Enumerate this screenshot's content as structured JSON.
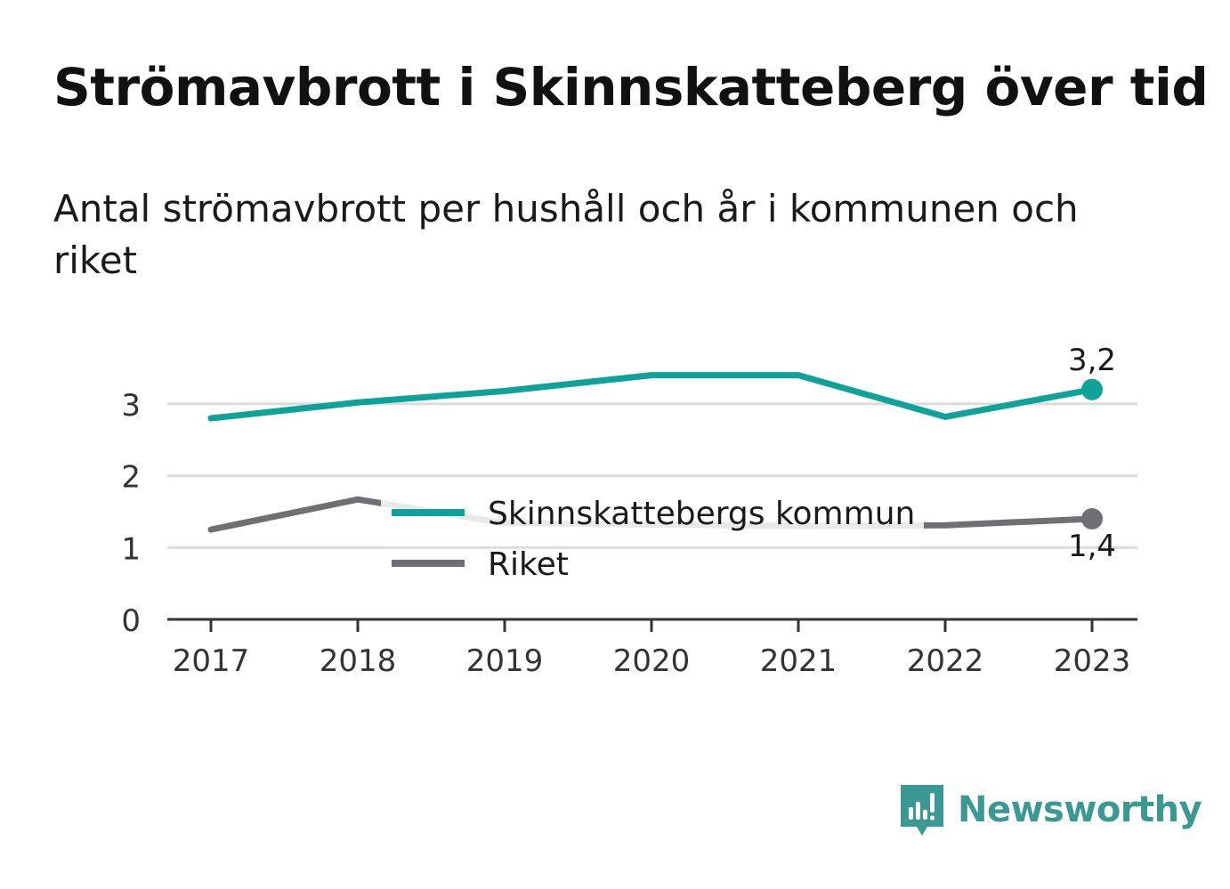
{
  "title": "Strömavbrott i Skinnskatteberg över tid",
  "subtitle": "Antal strömavbrott per hushåll och år i kommunen och riket",
  "brand": {
    "name": "Newsworthy",
    "icon": "newsworthy-logo-icon",
    "color": "#3a9a93"
  },
  "chart_data": {
    "type": "line",
    "x": [
      "2017",
      "2018",
      "2019",
      "2020",
      "2021",
      "2022",
      "2023"
    ],
    "ylim": [
      0,
      3.6
    ],
    "yticks": [
      0,
      1,
      2,
      3
    ],
    "grid": true,
    "legend_position": "center",
    "xlabel": "",
    "ylabel": "",
    "series": [
      {
        "name": "Skinnskattebergs kommun",
        "color": "#0ea39a",
        "values": [
          2.8,
          3.02,
          3.18,
          3.4,
          3.4,
          2.82,
          3.2
        ],
        "end_label": "3,2"
      },
      {
        "name": "Riket",
        "color": "#6f6f76",
        "values": [
          1.25,
          1.67,
          1.34,
          1.32,
          1.3,
          1.31,
          1.4
        ],
        "end_label": "1,4"
      }
    ]
  }
}
